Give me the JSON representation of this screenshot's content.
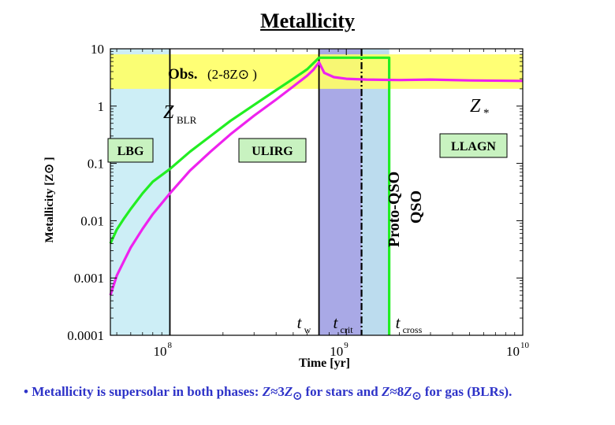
{
  "title": "Metallicity",
  "caption": {
    "bullet": "•",
    "text1": "Metallicity is supersolar in both phases: ",
    "z1": "Z",
    "approx1": "≈3",
    "zsun1": "Z",
    "text2": " for stars and ",
    "z2": "Z",
    "approx2": "≈8",
    "zsun2": "Z",
    "text3": " for gas (BLRs)."
  },
  "chart_data": {
    "type": "line",
    "title": "Metallicity",
    "xlabel": "Time  [yr]",
    "ylabel": "Metallicity [Z⊙ ]",
    "xscale": "log",
    "yscale": "log",
    "xlim": [
      46000000.0,
      10000000000.0
    ],
    "ylim": [
      0.0001,
      10
    ],
    "xticks": [
      {
        "value": 100000000.0,
        "label": "10",
        "exp": "8"
      },
      {
        "value": 1000000000.0,
        "label": "10",
        "exp": "9"
      },
      {
        "value": 10000000000.0,
        "label": "10",
        "exp": "10"
      }
    ],
    "yticks": [
      {
        "value": 10,
        "label": "10"
      },
      {
        "value": 1,
        "label": "1"
      },
      {
        "value": 0.1,
        "label": "0.1"
      },
      {
        "value": 0.01,
        "label": "0.01"
      },
      {
        "value": 0.001,
        "label": "0.001"
      },
      {
        "value": 0.0001,
        "label": "0.0001"
      }
    ],
    "obs_band": {
      "ymin": 2,
      "ymax": 8,
      "label": "Obs.",
      "range_label": "(2-8Z⊙ )",
      "color": "#ffff66"
    },
    "regions": [
      {
        "name": "LBG",
        "xmin": 46000000.0,
        "xmax": 100000000.0,
        "color": "#cdeef6"
      },
      {
        "name": "Proto-QSO",
        "xmin": 700000000.0,
        "xmax": 1220000000.0,
        "color": "#a9a9e6"
      },
      {
        "name": "QSO",
        "xmin": 1220000000.0,
        "xmax": 1750000000.0,
        "color": "#bcdcee"
      }
    ],
    "vlines": [
      {
        "x": 100000000.0,
        "style": "solid",
        "color": "#000000"
      },
      {
        "x": 700000000.0,
        "style": "solid",
        "color": "#000000"
      },
      {
        "x": 1220000000.0,
        "style": "dashdot",
        "color": "#000000"
      }
    ],
    "time_markers": [
      {
        "label": "t",
        "sub": "w",
        "x": 700000000.0
      },
      {
        "label": "t",
        "sub": "crit",
        "x": 1220000000.0
      },
      {
        "label": "t",
        "sub": "cross",
        "x": 1750000000.0
      }
    ],
    "phase_labels": [
      {
        "text": "LBG",
        "box": true,
        "color": "#c8f2c0"
      },
      {
        "text": "ULIRG",
        "box": true,
        "color": "#c8f2c0"
      },
      {
        "text": "LLAGN",
        "box": true,
        "color": "#c8f2c0"
      },
      {
        "text": "Proto-QSO",
        "box": false,
        "rotated": true
      },
      {
        "text": "QSO",
        "box": false,
        "rotated": true
      }
    ],
    "series": [
      {
        "name": "Z",
        "name_sub": "BLR",
        "color": "#22ee22",
        "x": [
          46000000.0,
          50000000.0,
          55000000.0,
          60000000.0,
          70000000.0,
          80000000.0,
          100000000.0,
          130000000.0,
          170000000.0,
          220000000.0,
          300000000.0,
          400000000.0,
          500000000.0,
          600000000.0,
          700000000.0,
          1000000000.0,
          1400000000.0,
          1750000000.0,
          1750000000.0
        ],
        "y": [
          0.004,
          0.007,
          0.011,
          0.016,
          0.03,
          0.048,
          0.08,
          0.16,
          0.3,
          0.55,
          1.05,
          1.9,
          3.0,
          4.4,
          7.0,
          7.0,
          7.0,
          7.0,
          0.0001
        ]
      },
      {
        "name": "Z",
        "name_sub": "*",
        "color": "#ee22ee",
        "x": [
          46000000.0,
          50000000.0,
          55000000.0,
          60000000.0,
          70000000.0,
          80000000.0,
          100000000.0,
          130000000.0,
          170000000.0,
          220000000.0,
          300000000.0,
          400000000.0,
          500000000.0,
          600000000.0,
          650000000.0,
          700000000.0,
          750000000.0,
          850000000.0,
          1000000000.0,
          1300000000.0,
          2000000000.0,
          3000000000.0,
          5000000000.0,
          10000000000.0
        ],
        "y": [
          0.0005,
          0.0011,
          0.002,
          0.0034,
          0.0072,
          0.013,
          0.03,
          0.075,
          0.16,
          0.32,
          0.68,
          1.3,
          2.2,
          3.4,
          4.3,
          5.8,
          3.8,
          3.2,
          3.0,
          2.9,
          2.85,
          2.9,
          2.8,
          2.75
        ]
      }
    ]
  }
}
